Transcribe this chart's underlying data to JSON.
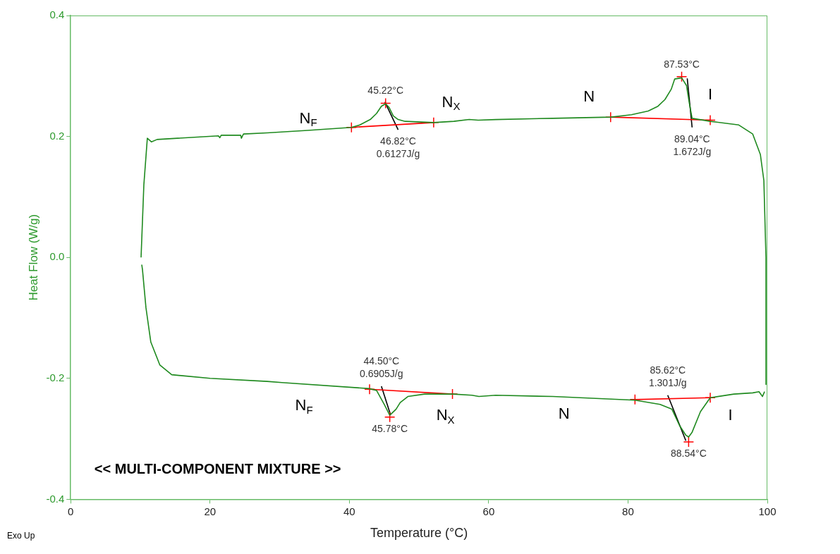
{
  "chart_data": {
    "type": "line",
    "xlabel": "Temperature (°C)",
    "ylabel": "Heat Flow (W/g)",
    "xlim": [
      0,
      100
    ],
    "xticks": [
      0,
      20,
      40,
      60,
      80,
      100
    ],
    "ylim": [
      -0.4,
      0.4
    ],
    "yticks": [
      -0.4,
      -0.2,
      {
        "value": 0,
        "label": "0.0"
      },
      0.2,
      0.4
    ],
    "grid": false,
    "legend": false,
    "series": [
      {
        "color": "#1f8a1f",
        "x": [
          10.1,
          10.5,
          11.0,
          11.6,
          12.4,
          21.2,
          21.4,
          21.6,
          24.4,
          24.5,
          24.8,
          28.2,
          34,
          40.3,
          41.5,
          43.0,
          43.9,
          44.6,
          45.2,
          45.7,
          46.3,
          47.0,
          48.0,
          52.1,
          55,
          57.2,
          58.5,
          61.0,
          69.2,
          77.6,
          80.5,
          82.9,
          84.3,
          85.3,
          86.2,
          86.7,
          87.7,
          88.4,
          88.8,
          89.2,
          91.8,
          95.9,
          97.9,
          99.0,
          99.5,
          99.8,
          99.8
        ],
        "values": [
          0,
          0.12,
          0.197,
          0.191,
          0.195,
          0.201,
          0.198,
          0.202,
          0.202,
          0.197,
          0.204,
          0.206,
          0.21,
          0.215,
          0.219,
          0.228,
          0.238,
          0.25,
          0.254,
          0.248,
          0.234,
          0.228,
          0.225,
          0.223,
          0.225,
          0.228,
          0.227,
          0.228,
          0.23,
          0.232,
          0.236,
          0.242,
          0.25,
          0.261,
          0.278,
          0.295,
          0.297,
          0.284,
          0.255,
          0.23,
          0.225,
          0.219,
          0.204,
          0.17,
          0.127,
          0,
          -0.21
        ]
      },
      {
        "color": "#1f8a1f",
        "x": [
          10.2,
          10.3,
          10.8,
          11.5,
          12.8,
          14.5,
          20,
          28.2,
          30.3,
          42.9,
          43.9,
          45.0,
          45.8,
          46.7,
          47.3,
          48.4,
          50.8,
          54.9,
          57.6,
          58.6,
          61.0,
          69.2,
          81.0,
          84.6,
          86.3,
          87.4,
          88.3,
          88.7,
          89.2,
          90.4,
          91.8,
          95.2,
          97.9,
          98.8,
          99.3,
          99.6
        ],
        "values": [
          -0.012,
          -0.02,
          -0.083,
          -0.14,
          -0.178,
          -0.194,
          -0.2,
          -0.205,
          -0.207,
          -0.217,
          -0.22,
          -0.243,
          -0.261,
          -0.251,
          -0.24,
          -0.23,
          -0.226,
          -0.226,
          -0.228,
          -0.23,
          -0.228,
          -0.23,
          -0.236,
          -0.243,
          -0.251,
          -0.278,
          -0.294,
          -0.297,
          -0.289,
          -0.255,
          -0.232,
          -0.226,
          -0.224,
          -0.222,
          -0.23,
          -0.222
        ]
      },
      {
        "color": "#ff0000",
        "marker": "cross",
        "x": [
          40.3,
          52.1
        ],
        "values": [
          0.215,
          0.223
        ]
      },
      {
        "color": "#ff0000",
        "marker": "cross",
        "x": [
          77.5,
          91.8
        ],
        "values": [
          0.232,
          0.227
        ]
      },
      {
        "color": "#ff0000",
        "marker": "cross",
        "x": [
          42.9,
          54.8
        ],
        "values": [
          -0.218,
          -0.226
        ]
      },
      {
        "color": "#ff0000",
        "marker": "cross",
        "x": [
          81.0,
          91.8
        ],
        "values": [
          -0.235,
          -0.232
        ]
      },
      {
        "type": "scatter",
        "color": "#ff0000",
        "marker": "cross",
        "x": [
          45.2,
          87.7,
          45.8,
          88.7
        ],
        "values": [
          0.255,
          0.299,
          -0.264,
          -0.305
        ]
      },
      {
        "color": "#000000",
        "x": [
          45.1,
          47.0
        ],
        "values": [
          0.257,
          0.211
        ]
      },
      {
        "color": "#000000",
        "x": [
          88.5,
          89.2
        ],
        "values": [
          0.296,
          0.215
        ]
      },
      {
        "color": "#000000",
        "x": [
          44.6,
          45.9
        ],
        "values": [
          -0.213,
          -0.26
        ]
      },
      {
        "color": "#000000",
        "x": [
          85.7,
          88.3
        ],
        "values": [
          -0.228,
          -0.303
        ]
      }
    ],
    "annotations": [
      "<< MULTI-COMPONENT MIXTURE >>",
      "Exo Up",
      {
        "text": "45.22°C",
        "x": 45.2,
        "y": 0.255
      },
      {
        "text": "46.82°C\n0.6127J/g",
        "x": 47.0,
        "y": 0.211
      },
      {
        "text": "87.53°C",
        "x": 87.7,
        "y": 0.299
      },
      {
        "text": "89.04°C\n1.672J/g",
        "x": 89.2,
        "y": 0.215
      },
      {
        "text": "44.50°C\n0.6905J/g",
        "x": 44.6,
        "y": -0.213
      },
      {
        "text": "45.78°C",
        "x": 45.8,
        "y": -0.264
      },
      {
        "text": "85.62°C\n1.301J/g",
        "x": 85.7,
        "y": -0.228
      },
      {
        "text": "88.54°C",
        "x": 88.7,
        "y": -0.305
      },
      "N$_{F}$",
      "N$_{X}$",
      "N",
      "I",
      "N$_{F}$",
      "N$_{X}$",
      "N",
      "I"
    ]
  }
}
